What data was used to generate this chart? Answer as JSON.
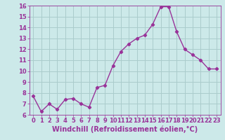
{
  "x": [
    0,
    1,
    2,
    3,
    4,
    5,
    6,
    7,
    8,
    9,
    10,
    11,
    12,
    13,
    14,
    15,
    16,
    17,
    18,
    19,
    20,
    21,
    22,
    23
  ],
  "y": [
    7.7,
    6.3,
    7.0,
    6.5,
    7.4,
    7.5,
    7.0,
    6.7,
    8.5,
    8.7,
    10.5,
    11.8,
    12.5,
    13.0,
    13.3,
    14.3,
    15.9,
    15.9,
    13.6,
    12.0,
    11.5,
    11.0,
    10.2,
    10.2
  ],
  "line_color": "#993399",
  "marker": "D",
  "marker_size": 2.2,
  "line_width": 1.0,
  "xlabel": "Windchill (Refroidissement éolien,°C)",
  "ylabel": "",
  "xlim": [
    -0.5,
    23.5
  ],
  "ylim": [
    6,
    16
  ],
  "yticks": [
    6,
    7,
    8,
    9,
    10,
    11,
    12,
    13,
    14,
    15,
    16
  ],
  "xticks": [
    0,
    1,
    2,
    3,
    4,
    5,
    6,
    7,
    8,
    9,
    10,
    11,
    12,
    13,
    14,
    15,
    16,
    17,
    18,
    19,
    20,
    21,
    22,
    23
  ],
  "bg_color": "#cce9e9",
  "grid_color": "#aacccc",
  "tick_color": "#993399",
  "label_color": "#993399",
  "xlabel_fontsize": 7.0,
  "tick_fontsize": 6.0
}
